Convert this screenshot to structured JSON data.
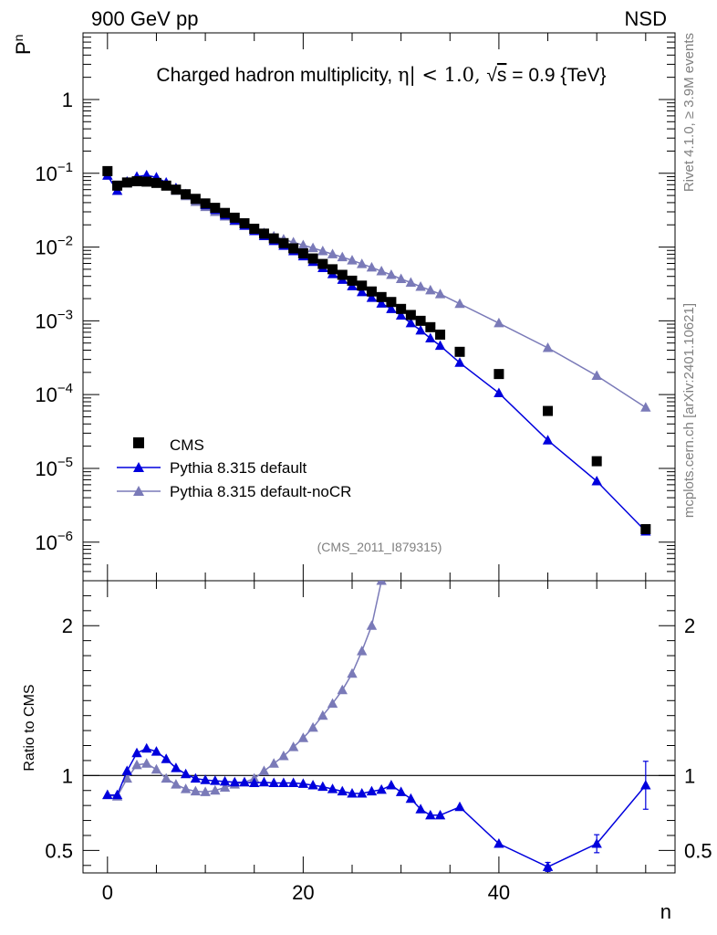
{
  "header": {
    "left": "900 GeV pp",
    "right": "NSD",
    "side_top": "Rivet 4.1.0, ≥ 3.9M events",
    "side_bottom": "mcplots.cern.ch [arXiv:2401.10621]",
    "analysis_id": "(CMS_2011_I879315)"
  },
  "chart_data": [
    {
      "type": "scatter",
      "title": "Charged hadron multiplicity, |η| < 1.0, √s = 0.9 {TeV}",
      "title_parts": {
        "pre": "Charged hadron multiplicity, ",
        "eta": "η| < 1.0, ",
        "root": "√",
        "s": "s",
        "post": " = 0.9 {TeV}"
      },
      "ylabel": "P",
      "ylabel_sub": "n",
      "yscale": "log",
      "ylim": [
        3e-07,
        8
      ],
      "xlim": [
        -2.5,
        58
      ],
      "y_ticks": [
        {
          "v": 1,
          "base": "1",
          "exp": ""
        },
        {
          "v": 0.1,
          "base": "10",
          "exp": "−1"
        },
        {
          "v": 0.01,
          "base": "10",
          "exp": "−2"
        },
        {
          "v": 0.001,
          "base": "10",
          "exp": "−3"
        },
        {
          "v": 0.0001,
          "base": "10",
          "exp": "−4"
        },
        {
          "v": 1e-05,
          "base": "10",
          "exp": "−5"
        },
        {
          "v": 1e-06,
          "base": "10",
          "exp": "−6"
        }
      ],
      "legend": {
        "position": "bottom-left",
        "entries": [
          "CMS",
          "Pythia 8.315 default",
          "Pythia 8.315 default-noCR"
        ]
      },
      "series": [
        {
          "name": "CMS",
          "marker": "square",
          "color": "#000000",
          "x": [
            0,
            1,
            2,
            3,
            4,
            5,
            6,
            7,
            8,
            9,
            10,
            11,
            12,
            13,
            14,
            15,
            16,
            17,
            18,
            19,
            20,
            21,
            22,
            23,
            24,
            25,
            26,
            27,
            28,
            29,
            30,
            31,
            32,
            33,
            34,
            36,
            40,
            45,
            50,
            55
          ],
          "y": [
            0.107,
            0.068,
            0.075,
            0.078,
            0.077,
            0.074,
            0.068,
            0.06,
            0.052,
            0.045,
            0.039,
            0.034,
            0.029,
            0.025,
            0.021,
            0.0177,
            0.0152,
            0.0131,
            0.0113,
            0.0096,
            0.0082,
            0.007,
            0.0059,
            0.005,
            0.0042,
            0.0035,
            0.003,
            0.0025,
            0.0021,
            0.0018,
            0.00145,
            0.0012,
            0.001,
            0.00082,
            0.00065,
            0.00038,
            0.00019,
            6e-05,
            1.25e-05,
            1.5e-06
          ]
        },
        {
          "name": "Pythia 8.315 default",
          "marker": "triangle",
          "color": "#0000dd",
          "x": [
            0,
            1,
            2,
            3,
            4,
            5,
            6,
            7,
            8,
            9,
            10,
            11,
            12,
            13,
            14,
            15,
            16,
            17,
            18,
            19,
            20,
            21,
            22,
            23,
            24,
            25,
            26,
            27,
            28,
            29,
            30,
            31,
            32,
            33,
            34,
            36,
            40,
            45,
            50,
            55
          ],
          "y": [
            0.093,
            0.058,
            0.077,
            0.09,
            0.094,
            0.088,
            0.075,
            0.063,
            0.052,
            0.044,
            0.037,
            0.032,
            0.027,
            0.023,
            0.0195,
            0.0165,
            0.0141,
            0.0121,
            0.0104,
            0.0088,
            0.0075,
            0.0063,
            0.0052,
            0.0043,
            0.0036,
            0.00295,
            0.00245,
            0.00205,
            0.00172,
            0.00145,
            0.00118,
            0.00093,
            0.00074,
            0.00058,
            0.00046,
            0.00027,
            0.000105,
            2.4e-05,
            6.7e-06,
            1.4e-06
          ]
        },
        {
          "name": "Pythia 8.315 default-noCR",
          "marker": "triangle",
          "color": "#7a7ab8",
          "x": [
            0,
            1,
            2,
            3,
            4,
            5,
            6,
            7,
            8,
            9,
            10,
            11,
            12,
            13,
            14,
            15,
            16,
            17,
            18,
            19,
            20,
            21,
            22,
            23,
            24,
            25,
            26,
            27,
            28,
            29,
            30,
            31,
            32,
            33,
            34,
            36,
            40,
            45,
            50,
            55
          ],
          "y": [
            0.093,
            0.058,
            0.073,
            0.083,
            0.084,
            0.078,
            0.068,
            0.058,
            0.049,
            0.041,
            0.035,
            0.03,
            0.026,
            0.0225,
            0.0195,
            0.0173,
            0.0155,
            0.014,
            0.0127,
            0.0116,
            0.0106,
            0.0097,
            0.0088,
            0.008,
            0.0073,
            0.0066,
            0.0059,
            0.0053,
            0.0047,
            0.0042,
            0.0037,
            0.0033,
            0.0029,
            0.0026,
            0.0023,
            0.0017,
            0.00093,
            0.00043,
            0.00018,
            6.7e-05
          ]
        }
      ]
    },
    {
      "type": "scatter",
      "ylabel": "Ratio to CMS",
      "xlabel": "n",
      "ylim": [
        0.35,
        2.3
      ],
      "xlim": [
        -2.5,
        58
      ],
      "x_ticks": [
        "0",
        "20",
        "40"
      ],
      "y_ticks": [
        "0.5",
        "1",
        "2"
      ],
      "reference_line": 1,
      "series": [
        {
          "name": "Pythia 8.315 default",
          "marker": "triangle",
          "color": "#0000dd",
          "x": [
            0,
            1,
            2,
            3,
            4,
            5,
            6,
            7,
            8,
            9,
            10,
            11,
            12,
            13,
            14,
            15,
            16,
            17,
            18,
            19,
            20,
            21,
            22,
            23,
            24,
            25,
            26,
            27,
            28,
            29,
            30,
            31,
            32,
            33,
            34,
            36,
            40,
            45,
            50,
            55
          ],
          "y": [
            0.87,
            0.87,
            1.03,
            1.15,
            1.18,
            1.16,
            1.11,
            1.05,
            1.01,
            0.98,
            0.97,
            0.965,
            0.96,
            0.955,
            0.955,
            0.95,
            0.955,
            0.95,
            0.95,
            0.95,
            0.945,
            0.935,
            0.925,
            0.91,
            0.895,
            0.88,
            0.88,
            0.895,
            0.905,
            0.935,
            0.89,
            0.845,
            0.775,
            0.735,
            0.735,
            0.79,
            0.545,
            0.39,
            0.545,
            0.935
          ],
          "err": {
            "45": 0.03,
            "50": 0.06,
            "55": 0.16
          }
        },
        {
          "name": "Pythia 8.315 default-noCR",
          "marker": "triangle",
          "color": "#7a7ab8",
          "x": [
            0,
            1,
            2,
            3,
            4,
            5,
            6,
            7,
            8,
            9,
            10,
            11,
            12,
            13,
            14,
            15,
            16,
            17,
            18,
            19,
            20,
            21,
            22,
            23,
            24,
            25,
            26,
            27,
            28
          ],
          "y": [
            0.87,
            0.86,
            0.98,
            1.07,
            1.08,
            1.04,
            0.98,
            0.94,
            0.91,
            0.895,
            0.89,
            0.9,
            0.92,
            0.94,
            0.955,
            0.98,
            1.03,
            1.08,
            1.13,
            1.19,
            1.25,
            1.32,
            1.4,
            1.48,
            1.57,
            1.68,
            1.83,
            2.0,
            2.3
          ]
        }
      ]
    }
  ]
}
